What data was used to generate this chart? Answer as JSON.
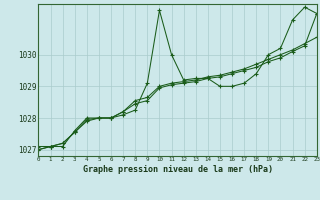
{
  "title": "Graphe pression niveau de la mer (hPa)",
  "background_color": "#cde8ea",
  "line_color": "#1a5c1a",
  "grid_color": "#aacccc",
  "xlim": [
    0,
    23
  ],
  "ylim": [
    1026.8,
    1031.6
  ],
  "xticks": [
    0,
    1,
    2,
    3,
    4,
    5,
    6,
    7,
    8,
    9,
    10,
    11,
    12,
    13,
    14,
    15,
    16,
    17,
    18,
    19,
    20,
    21,
    22,
    23
  ],
  "yticks": [
    1027,
    1028,
    1029,
    1030
  ],
  "series1_x": [
    0,
    1,
    2,
    3,
    4,
    5,
    6,
    7,
    8,
    9,
    10,
    11,
    12,
    13,
    14,
    15,
    16,
    17,
    18,
    19,
    20,
    21,
    22,
    23
  ],
  "series1_y": [
    1027.1,
    1027.1,
    1027.1,
    1027.6,
    1028.0,
    1028.0,
    1028.0,
    1028.1,
    1028.25,
    1029.1,
    1031.4,
    1030.0,
    1029.2,
    1029.25,
    1029.25,
    1029.0,
    1029.0,
    1029.1,
    1029.4,
    1030.0,
    1030.2,
    1031.1,
    1031.5,
    1031.3
  ],
  "series2_x": [
    0,
    1,
    2,
    3,
    4,
    5,
    6,
    7,
    8,
    9,
    10,
    11,
    12,
    13,
    14,
    15,
    16,
    17,
    18,
    19,
    20,
    21,
    22,
    23
  ],
  "series2_y": [
    1027.0,
    1027.1,
    1027.2,
    1027.55,
    1027.9,
    1028.0,
    1028.0,
    1028.2,
    1028.55,
    1028.65,
    1029.0,
    1029.1,
    1029.15,
    1029.2,
    1029.3,
    1029.35,
    1029.45,
    1029.55,
    1029.7,
    1029.85,
    1030.0,
    1030.15,
    1030.35,
    1030.55
  ],
  "series3_x": [
    0,
    1,
    2,
    3,
    4,
    5,
    6,
    7,
    8,
    9,
    10,
    11,
    12,
    13,
    14,
    15,
    16,
    17,
    18,
    19,
    20,
    21,
    22,
    23
  ],
  "series3_y": [
    1027.0,
    1027.1,
    1027.2,
    1027.55,
    1027.95,
    1028.0,
    1028.0,
    1028.2,
    1028.45,
    1028.55,
    1028.95,
    1029.05,
    1029.1,
    1029.15,
    1029.25,
    1029.3,
    1029.4,
    1029.5,
    1029.6,
    1029.78,
    1029.9,
    1030.1,
    1030.28,
    1031.3
  ]
}
